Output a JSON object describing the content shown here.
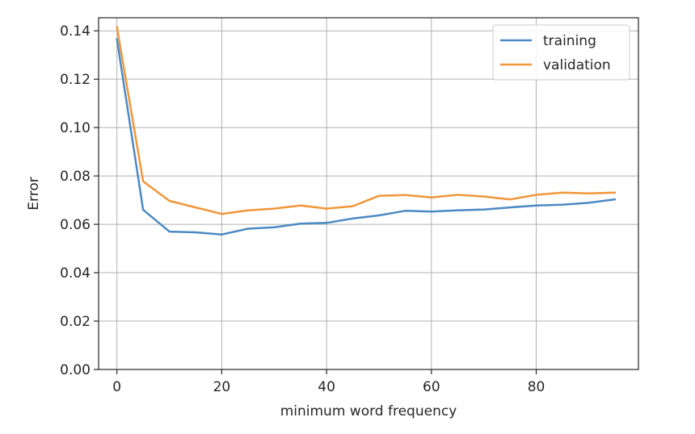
{
  "chart_data": {
    "type": "line",
    "title": "",
    "xlabel": "minimum word frequency",
    "ylabel": "Error",
    "xlim": [
      -3.5,
      99.5
    ],
    "ylim": [
      0.0,
      0.1454
    ],
    "xticks": [
      0,
      20,
      40,
      60,
      80
    ],
    "xtick_labels": [
      "0",
      "20",
      "40",
      "60",
      "80"
    ],
    "yticks": [
      0.0,
      0.02,
      0.04,
      0.06,
      0.08,
      0.1,
      0.12,
      0.14
    ],
    "ytick_labels": [
      "0.00",
      "0.02",
      "0.04",
      "0.06",
      "0.08",
      "0.10",
      "0.12",
      "0.14"
    ],
    "grid": true,
    "legend_position": "top-right",
    "x": [
      0,
      5,
      10,
      15,
      20,
      25,
      30,
      35,
      40,
      45,
      50,
      55,
      60,
      65,
      70,
      75,
      80,
      85,
      90,
      95
    ],
    "series": [
      {
        "name": "training",
        "color": "#4c8ac3",
        "values": [
          0.1365,
          0.066,
          0.057,
          0.0567,
          0.0558,
          0.0582,
          0.0588,
          0.0603,
          0.0606,
          0.0624,
          0.0637,
          0.0656,
          0.0653,
          0.0658,
          0.0661,
          0.067,
          0.0678,
          0.0681,
          0.0689,
          0.0703
        ]
      },
      {
        "name": "validation",
        "color": "#f0963a",
        "values": [
          0.1415,
          0.0778,
          0.0697,
          0.067,
          0.0643,
          0.0658,
          0.0665,
          0.0678,
          0.0665,
          0.0675,
          0.0718,
          0.0721,
          0.0711,
          0.0722,
          0.0715,
          0.0703,
          0.0722,
          0.0731,
          0.0728,
          0.0731
        ]
      }
    ]
  }
}
